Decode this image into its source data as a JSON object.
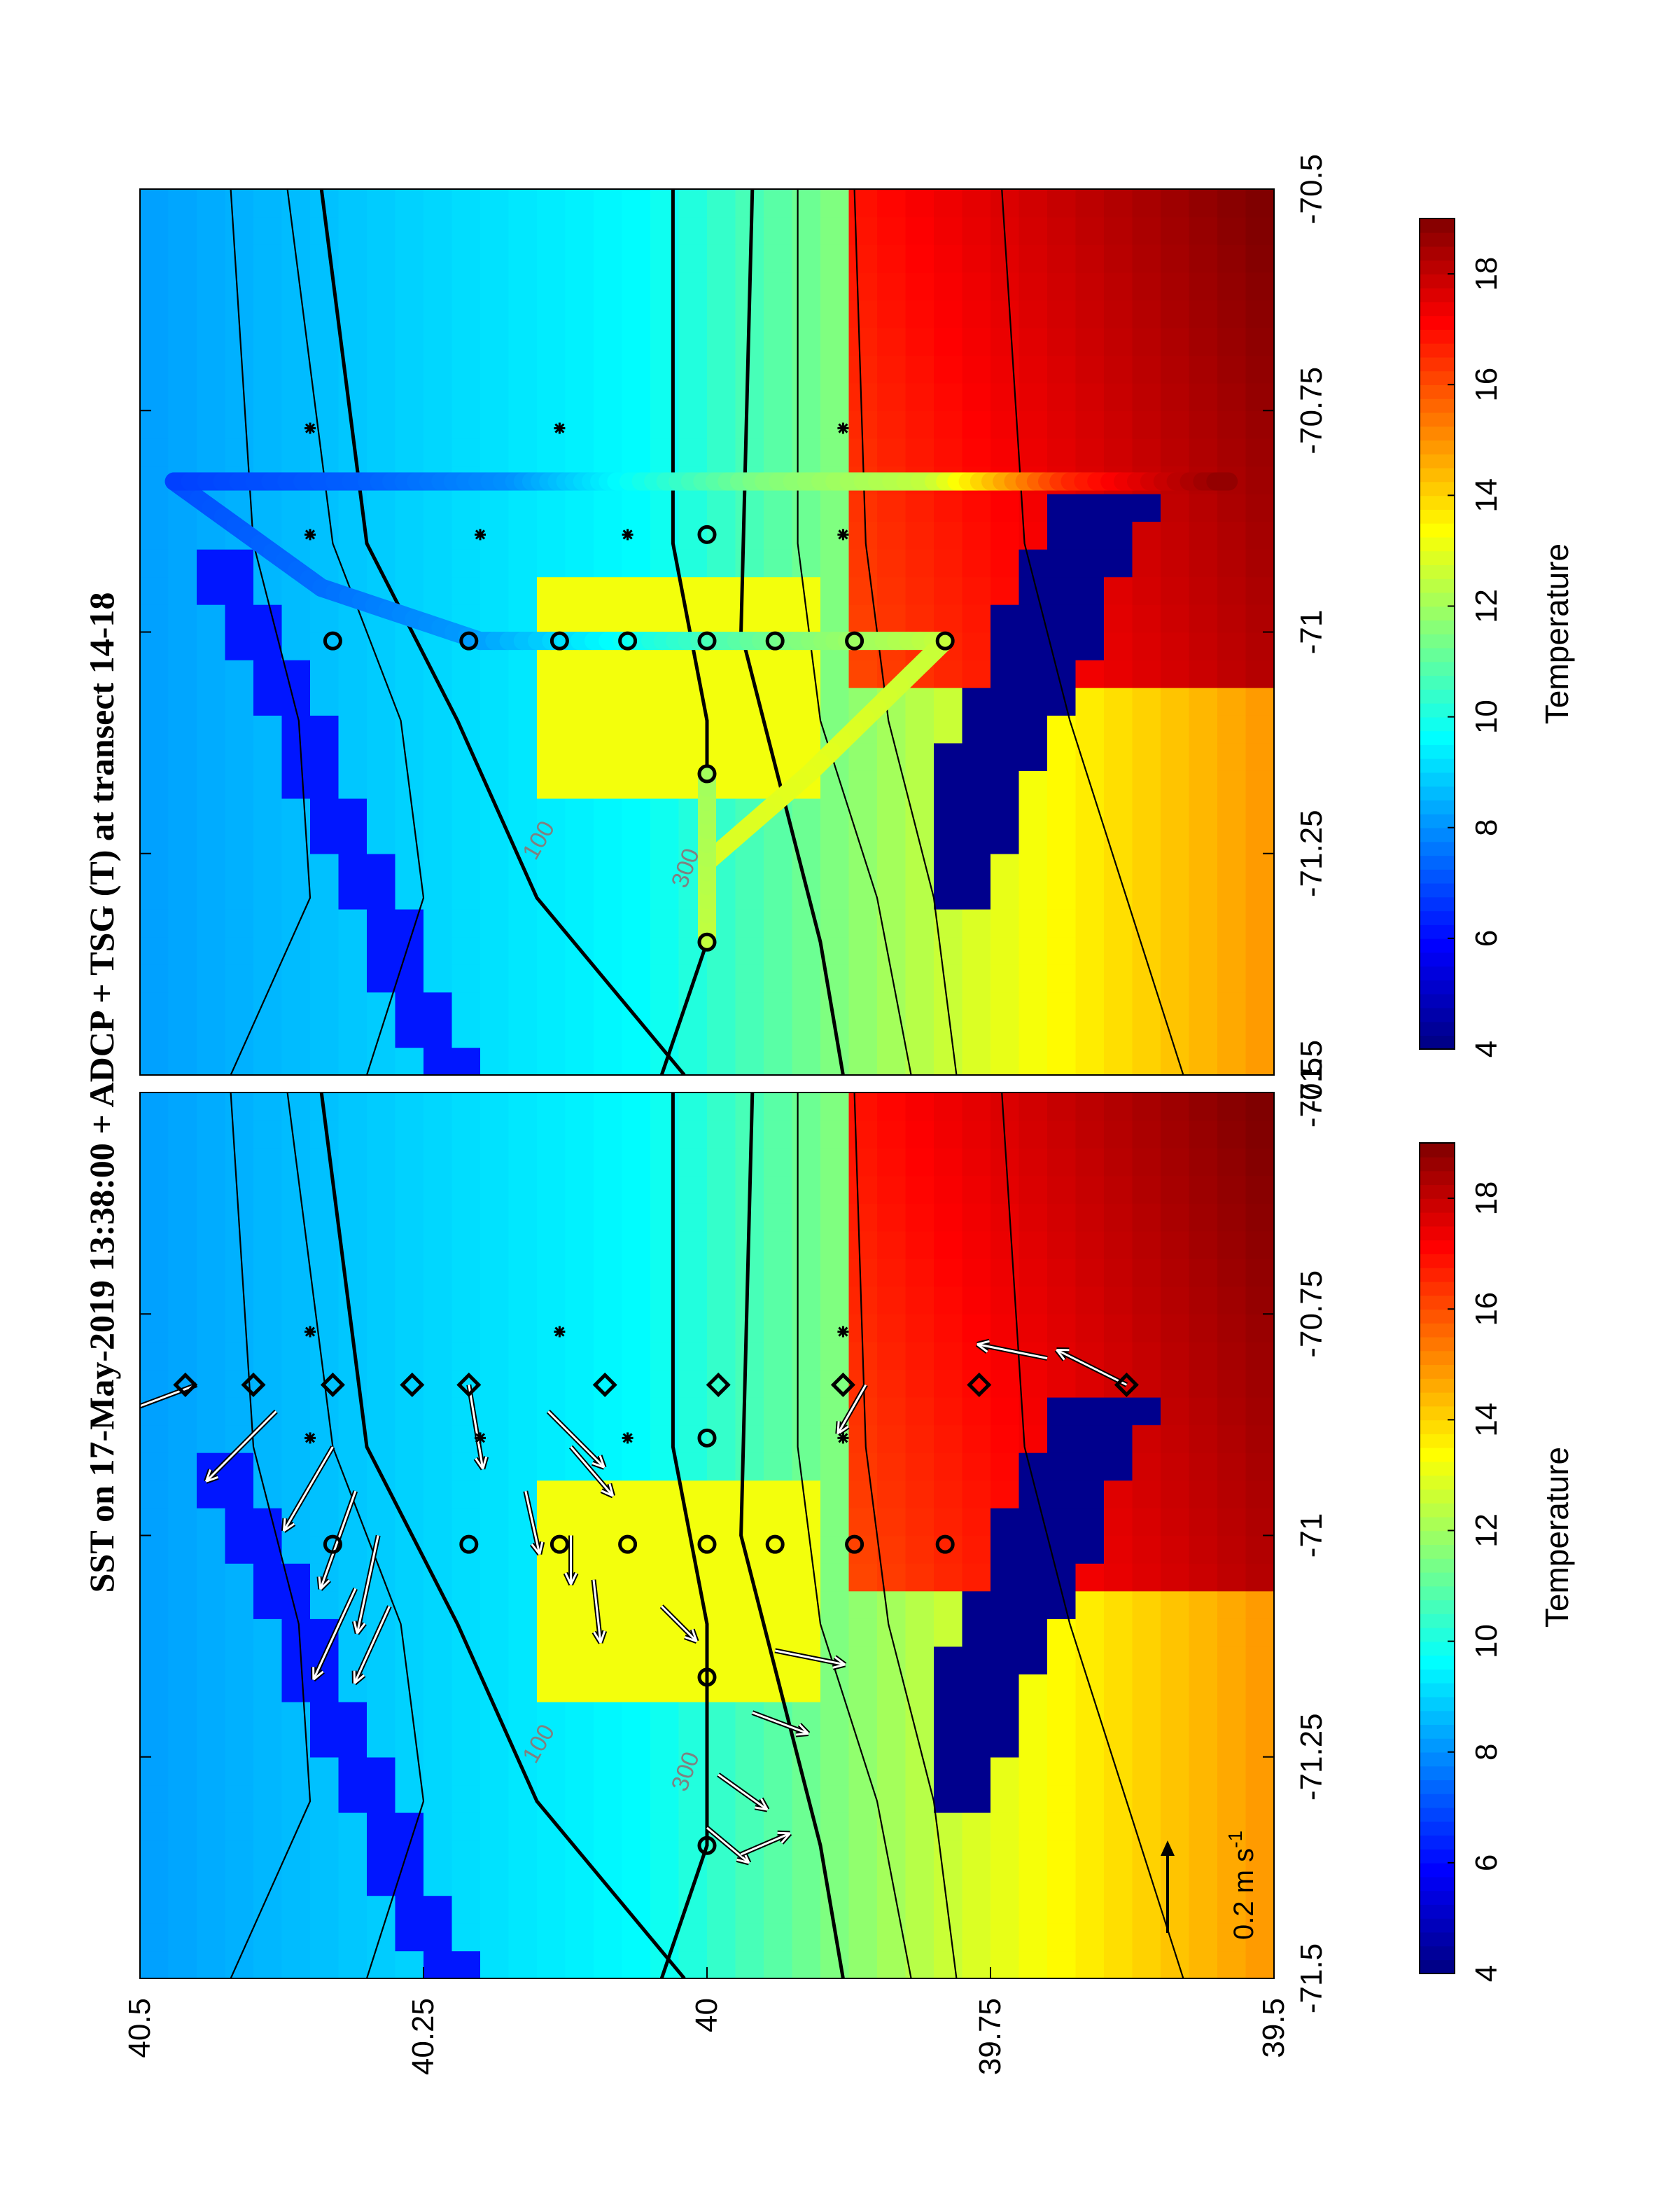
{
  "title": "SST on 17-May-2019 13:38:00 + ADCP + TSG (T) at transect 14-18",
  "colors": {
    "deep": "#000080",
    "cold": "#0a3cff",
    "blue": "#2f86f0",
    "light_blue": "#4fc0f5",
    "cyan": "#33d8e8",
    "green": "#9de06a",
    "yellow": "#f1ee28",
    "orange": "#f9a21e",
    "red": "#f03a18",
    "dark_red": "#b41000",
    "contour": "#000000",
    "label_grey": "#808080"
  },
  "chart_data": [
    {
      "type": "heatmap",
      "panel": "left",
      "xlabel": "",
      "ylabel": "",
      "xlim": [
        -71.5,
        -70.5
      ],
      "ylim": [
        39.5,
        40.5
      ],
      "x_ticks": [
        "-71.5",
        "-71.25",
        "-71",
        "-70.75",
        "-70.5"
      ],
      "y_ticks": [
        "40.5",
        "40.25",
        "40",
        "39.75",
        "39.5"
      ],
      "colorbar": {
        "label": "Temperature",
        "range": [
          4,
          19
        ],
        "ticks": [
          "4",
          "6",
          "8",
          "10",
          "12",
          "14",
          "16",
          "18"
        ]
      },
      "isobath_labels": [
        "100",
        "300"
      ],
      "scale_arrow_label": "0.2 m s",
      "scale_arrow_exponent": "-1",
      "stations": [
        {
          "lon": -71.01,
          "lat": 40.33,
          "marker": "circle"
        },
        {
          "lon": -71.01,
          "lat": 40.21,
          "marker": "circle"
        },
        {
          "lon": -71.01,
          "lat": 40.13,
          "marker": "circle"
        },
        {
          "lon": -71.01,
          "lat": 40.07,
          "marker": "circle"
        },
        {
          "lon": -71.01,
          "lat": 40.0,
          "marker": "circle"
        },
        {
          "lon": -71.01,
          "lat": 39.94,
          "marker": "circle"
        },
        {
          "lon": -71.01,
          "lat": 39.87,
          "marker": "circle"
        },
        {
          "lon": -71.01,
          "lat": 39.79,
          "marker": "circle"
        },
        {
          "lon": -71.16,
          "lat": 40.0,
          "marker": "circle"
        },
        {
          "lon": -71.35,
          "lat": 40.0,
          "marker": "circle"
        },
        {
          "lon": -70.89,
          "lat": 40.0,
          "marker": "circle"
        },
        {
          "lon": -70.83,
          "lat": 40.46,
          "marker": "diamond"
        },
        {
          "lon": -70.83,
          "lat": 40.4,
          "marker": "diamond"
        },
        {
          "lon": -70.83,
          "lat": 40.33,
          "marker": "diamond"
        },
        {
          "lon": -70.83,
          "lat": 40.26,
          "marker": "diamond"
        },
        {
          "lon": -70.83,
          "lat": 40.21,
          "marker": "diamond"
        },
        {
          "lon": -70.83,
          "lat": 40.09,
          "marker": "diamond"
        },
        {
          "lon": -70.83,
          "lat": 39.99,
          "marker": "diamond"
        },
        {
          "lon": -70.83,
          "lat": 39.88,
          "marker": "diamond"
        },
        {
          "lon": -70.83,
          "lat": 39.76,
          "marker": "diamond"
        },
        {
          "lon": -70.83,
          "lat": 39.63,
          "marker": "diamond"
        },
        {
          "lon": -70.77,
          "lat": 40.35,
          "marker": "star"
        },
        {
          "lon": -70.77,
          "lat": 40.13,
          "marker": "star"
        },
        {
          "lon": -70.77,
          "lat": 39.88,
          "marker": "star"
        },
        {
          "lon": -70.89,
          "lat": 40.35,
          "marker": "star"
        },
        {
          "lon": -70.89,
          "lat": 40.2,
          "marker": "star"
        },
        {
          "lon": -70.89,
          "lat": 40.07,
          "marker": "star"
        },
        {
          "lon": -70.89,
          "lat": 39.88,
          "marker": "star"
        }
      ],
      "current_vectors": [
        {
          "lon": -70.83,
          "lat": 40.45,
          "u": -0.06,
          "v": 0.16
        },
        {
          "lon": -70.86,
          "lat": 40.38,
          "u": -0.1,
          "v": 0.1
        },
        {
          "lon": -70.9,
          "lat": 40.33,
          "u": -0.12,
          "v": 0.07
        },
        {
          "lon": -70.95,
          "lat": 40.31,
          "u": -0.14,
          "v": 0.05
        },
        {
          "lon": -71.0,
          "lat": 40.29,
          "u": -0.14,
          "v": 0.03
        },
        {
          "lon": -71.06,
          "lat": 40.31,
          "u": -0.13,
          "v": 0.06
        },
        {
          "lon": -71.08,
          "lat": 40.28,
          "u": -0.11,
          "v": 0.05
        },
        {
          "lon": -70.83,
          "lat": 40.21,
          "u": -0.12,
          "v": -0.02
        },
        {
          "lon": -70.86,
          "lat": 40.14,
          "u": -0.08,
          "v": -0.08
        },
        {
          "lon": -70.9,
          "lat": 40.12,
          "u": -0.07,
          "v": -0.06
        },
        {
          "lon": -70.95,
          "lat": 40.16,
          "u": -0.09,
          "v": -0.02
        },
        {
          "lon": -71.0,
          "lat": 40.12,
          "u": -0.07,
          "v": 0.0
        },
        {
          "lon": -71.05,
          "lat": 40.1,
          "u": -0.09,
          "v": -0.01
        },
        {
          "lon": -71.08,
          "lat": 40.04,
          "u": -0.05,
          "v": -0.05
        },
        {
          "lon": -71.13,
          "lat": 39.94,
          "u": -0.02,
          "v": -0.1
        },
        {
          "lon": -71.2,
          "lat": 39.96,
          "u": -0.03,
          "v": -0.08
        },
        {
          "lon": -71.27,
          "lat": 39.99,
          "u": -0.05,
          "v": -0.07
        },
        {
          "lon": -71.33,
          "lat": 40.0,
          "u": -0.05,
          "v": -0.06
        },
        {
          "lon": -71.36,
          "lat": 39.97,
          "u": 0.03,
          "v": -0.07
        },
        {
          "lon": -70.83,
          "lat": 39.86,
          "u": -0.07,
          "v": 0.04
        },
        {
          "lon": -70.8,
          "lat": 39.7,
          "u": 0.02,
          "v": 0.1
        },
        {
          "lon": -70.83,
          "lat": 39.63,
          "u": 0.05,
          "v": 0.1
        }
      ]
    },
    {
      "type": "heatmap",
      "panel": "right",
      "xlabel": "",
      "ylabel": "",
      "xlim": [
        -71.5,
        -70.5
      ],
      "ylim": [
        39.5,
        40.5
      ],
      "x_ticks": [
        "-71.5",
        "-71.25",
        "-71",
        "-70.75",
        "-70.5"
      ],
      "colorbar": {
        "label": "Temperature",
        "range": [
          4,
          19
        ],
        "ticks": [
          "4",
          "6",
          "8",
          "10",
          "12",
          "14",
          "16",
          "18"
        ]
      },
      "isobath_labels": [
        "100",
        "300"
      ],
      "tsg_track": [
        {
          "lon": -70.83,
          "lat": 40.47,
          "t": 6.8
        },
        {
          "lon": -70.83,
          "lat": 40.3,
          "t": 7.3
        },
        {
          "lon": -70.83,
          "lat": 40.17,
          "t": 8.0
        },
        {
          "lon": -70.83,
          "lat": 40.08,
          "t": 9.5
        },
        {
          "lon": -70.83,
          "lat": 39.95,
          "t": 11.5
        },
        {
          "lon": -70.83,
          "lat": 39.8,
          "t": 12.5
        },
        {
          "lon": -70.83,
          "lat": 39.68,
          "t": 16.5
        },
        {
          "lon": -70.83,
          "lat": 39.54,
          "t": 18.8
        }
      ],
      "tsg_track_2": [
        {
          "lon": -70.83,
          "lat": 40.47,
          "t": 7.0
        },
        {
          "lon": -70.95,
          "lat": 40.34,
          "t": 7.5
        },
        {
          "lon": -71.01,
          "lat": 40.2,
          "t": 8.2
        },
        {
          "lon": -71.01,
          "lat": 40.05,
          "t": 10.0
        },
        {
          "lon": -71.01,
          "lat": 39.92,
          "t": 11.5
        },
        {
          "lon": -71.01,
          "lat": 39.79,
          "t": 12.5
        },
        {
          "lon": -71.16,
          "lat": 39.91,
          "t": 13.0
        },
        {
          "lon": -71.26,
          "lat": 40.0,
          "t": 12.8
        },
        {
          "lon": -71.35,
          "lat": 40.0,
          "t": 12.5
        },
        {
          "lon": -71.16,
          "lat": 40.0,
          "t": 12.0
        }
      ]
    }
  ]
}
